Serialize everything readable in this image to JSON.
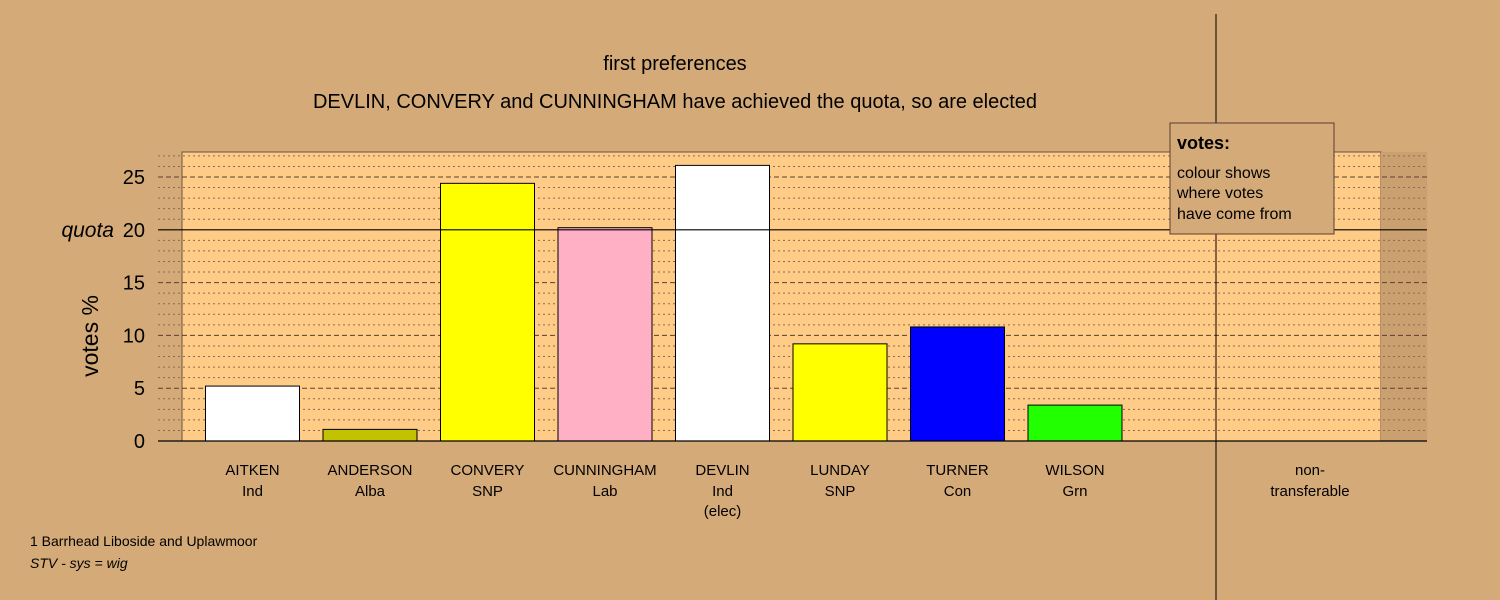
{
  "chart_data": {
    "type": "bar",
    "title": "first preferences",
    "subtitle": "DEVLIN, CONVERY and CUNNINGHAM have achieved the quota, so are elected",
    "ylabel": "votes %",
    "ylim": [
      0,
      27
    ],
    "yticks": [
      0,
      5,
      10,
      15,
      20,
      25
    ],
    "quota": 20,
    "quota_label": "quota",
    "grid": true,
    "categories": [
      {
        "name": "AITKEN",
        "party": "Ind",
        "note": ""
      },
      {
        "name": "ANDERSON",
        "party": "Alba",
        "note": ""
      },
      {
        "name": "CONVERY",
        "party": "SNP",
        "note": ""
      },
      {
        "name": "CUNNINGHAM",
        "party": "Lab",
        "note": ""
      },
      {
        "name": "DEVLIN",
        "party": "Ind",
        "note": "(elec)"
      },
      {
        "name": "LUNDAY",
        "party": "SNP",
        "note": ""
      },
      {
        "name": "TURNER",
        "party": "Con",
        "note": ""
      },
      {
        "name": "WILSON",
        "party": "Grn",
        "note": ""
      }
    ],
    "values": [
      5.2,
      1.1,
      24.4,
      20.2,
      26.1,
      9.2,
      10.8,
      3.4
    ],
    "colors": [
      "#ffffff",
      "#c2c200",
      "#ffff00",
      "#ffb0c4",
      "#ffffff",
      "#ffff00",
      "#0000ff",
      "#22ff00"
    ],
    "nontransferable_label": [
      "non-",
      "transferable"
    ],
    "nontransferable_value": 0,
    "legend": {
      "title": "votes:",
      "lines": [
        "colour shows",
        "where votes",
        "have come from"
      ],
      "placement": "top-right"
    }
  },
  "footer": {
    "ward": "1 Barrhead Liboside and Uplawmoor",
    "system": "STV - sys = wig"
  },
  "colors": {
    "background": "#d4aa78",
    "plot_area": "#ffcc88"
  }
}
